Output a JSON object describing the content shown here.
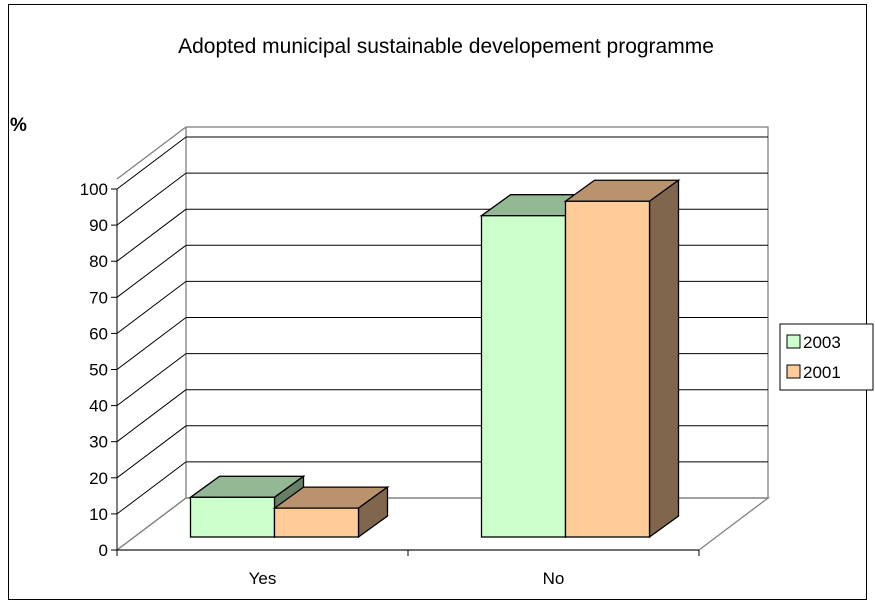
{
  "chart_data": {
    "type": "bar",
    "title": "Adopted municipal sustainable developement programme",
    "ylabel": "%",
    "xlabel": "",
    "categories": [
      "Yes",
      "No"
    ],
    "ylim": [
      0,
      100
    ],
    "yticks": [
      0,
      10,
      20,
      30,
      40,
      50,
      60,
      70,
      80,
      90,
      100
    ],
    "grid": true,
    "three_d": true,
    "legend_position": "right",
    "series": [
      {
        "name": "2003",
        "values": [
          11,
          89
        ],
        "color": "#ccffcc"
      },
      {
        "name": "2001",
        "values": [
          8,
          93
        ],
        "color": "#ffcc99"
      }
    ]
  }
}
